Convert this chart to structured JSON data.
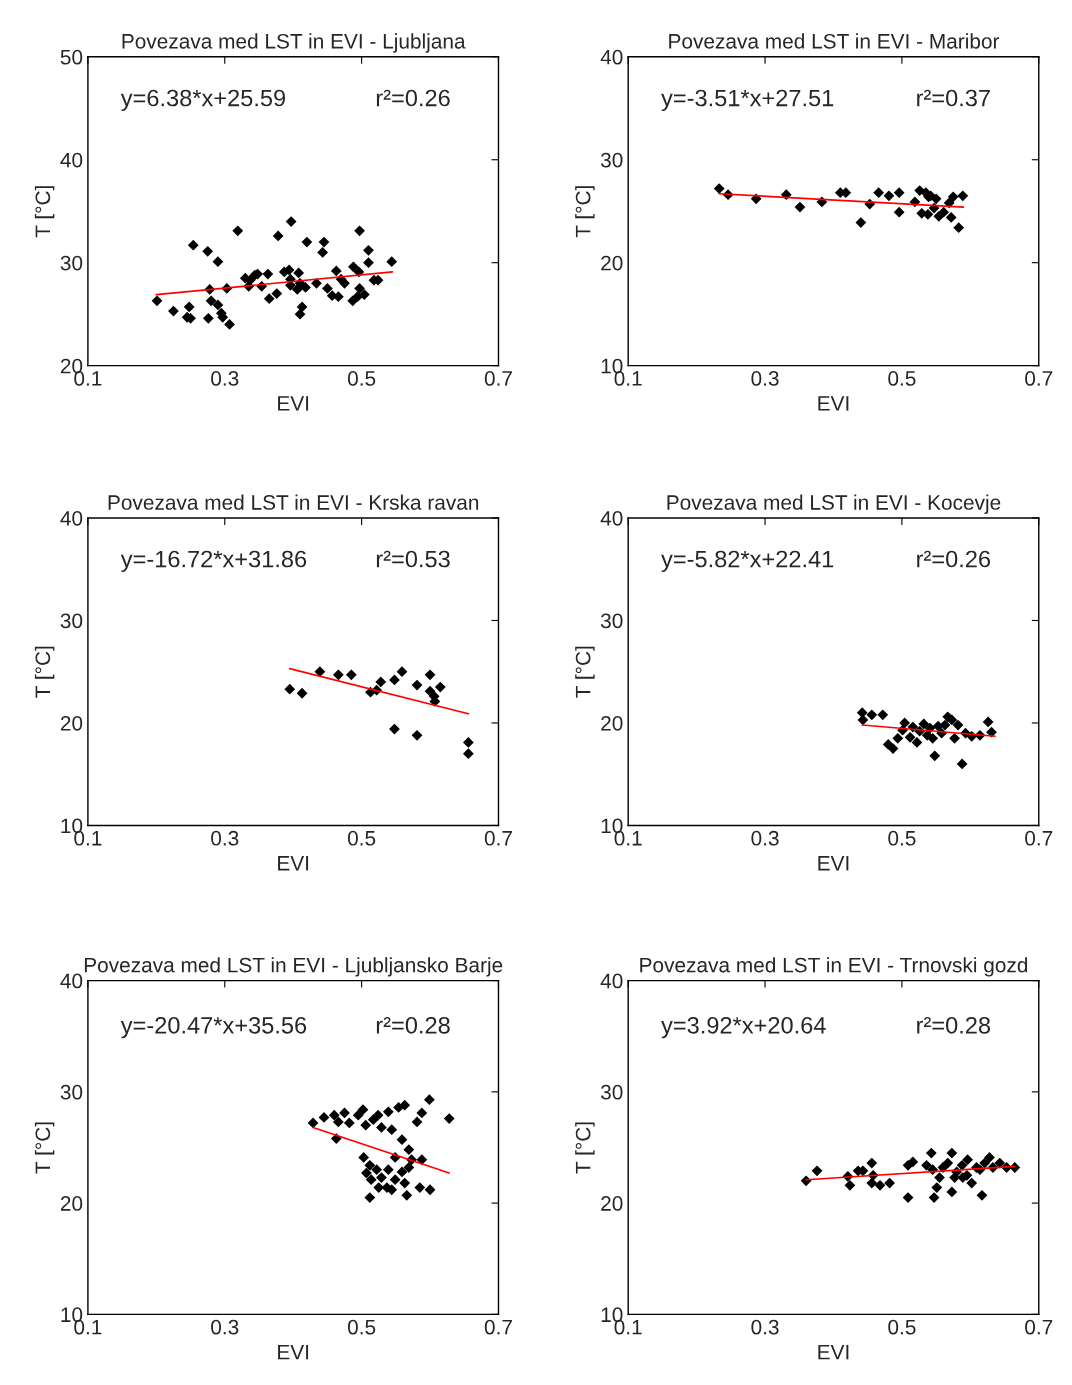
{
  "chart_data": [
    {
      "type": "scatter",
      "title": "Povezava med LST in EVI - Ljubljana",
      "xlabel": "EVI",
      "ylabel": "T [°C]",
      "xlim": [
        0.1,
        0.7
      ],
      "xticks": [
        0.1,
        0.3,
        0.5,
        0.7
      ],
      "ylim": [
        20,
        50
      ],
      "yticks": [
        20,
        30,
        40,
        50
      ],
      "annotations": [
        "y=6.38*x+25.59",
        "r²=0.26"
      ],
      "series": [
        {
          "marker": "diamond",
          "color": "#000000",
          "x": [
            0.201,
            0.225,
            0.245,
            0.248,
            0.254,
            0.275,
            0.29,
            0.25,
            0.276,
            0.28,
            0.29,
            0.295,
            0.297,
            0.307,
            0.278,
            0.303,
            0.319,
            0.33,
            0.335,
            0.337,
            0.344,
            0.348,
            0.363,
            0.354,
            0.365,
            0.376,
            0.378,
            0.387,
            0.394,
            0.396,
            0.396,
            0.397,
            0.408,
            0.406,
            0.41,
            0.418,
            0.41,
            0.413,
            0.42,
            0.445,
            0.443,
            0.434,
            0.45,
            0.457,
            0.466,
            0.463,
            0.47,
            0.475,
            0.487,
            0.496,
            0.497,
            0.494,
            0.504,
            0.497,
            0.51,
            0.51,
            0.518,
            0.524,
            0.544,
            0.488
          ],
          "values": [
            26.3,
            25.3,
            24.7,
            25.7,
            31.7,
            31.1,
            30.1,
            24.6,
            24.6,
            26.3,
            25.9,
            25.1,
            24.7,
            24.0,
            27.4,
            27.5,
            33.1,
            28.5,
            27.7,
            28.3,
            28.8,
            28.9,
            28.9,
            27.7,
            26.5,
            27.0,
            32.6,
            29.1,
            29.3,
            28.4,
            27.8,
            34.0,
            29.0,
            27.4,
            28.0,
            27.6,
            25.0,
            25.7,
            32.0,
            32.0,
            31.0,
            28.0,
            27.5,
            26.8,
            26.7,
            29.2,
            28.4,
            28.0,
            26.3,
            29.1,
            27.5,
            26.7,
            26.9,
            33.1,
            31.2,
            30.0,
            28.3,
            28.3,
            30.1,
            29.6
          ]
        },
        {
          "type": "line",
          "color": "#ff0000",
          "x": [
            0.2,
            0.545
          ],
          "values": [
            26.9,
            29.1
          ]
        }
      ]
    },
    {
      "type": "scatter",
      "title": "Povezava med LST in EVI - Maribor",
      "xlabel": "EVI",
      "ylabel": "T [°C]",
      "xlim": [
        0.1,
        0.7
      ],
      "xticks": [
        0.1,
        0.3,
        0.5,
        0.7
      ],
      "ylim": [
        10,
        40
      ],
      "yticks": [
        10,
        20,
        30,
        40
      ],
      "annotations": [
        "y=-3.51*x+27.51",
        "r²=0.37"
      ],
      "series": [
        {
          "marker": "diamond",
          "color": "#000000",
          "x": [
            0.233,
            0.246,
            0.287,
            0.331,
            0.351,
            0.383,
            0.41,
            0.418,
            0.44,
            0.453,
            0.466,
            0.481,
            0.496,
            0.496,
            0.519,
            0.526,
            0.535,
            0.539,
            0.55,
            0.529,
            0.538,
            0.547,
            0.554,
            0.569,
            0.572,
            0.575,
            0.583,
            0.589,
            0.542,
            0.561
          ],
          "values": [
            27.2,
            26.6,
            26.2,
            26.6,
            25.4,
            25.9,
            26.8,
            26.8,
            23.9,
            25.7,
            26.8,
            26.5,
            26.8,
            24.9,
            25.9,
            27.0,
            26.8,
            26.4,
            26.2,
            24.8,
            24.7,
            25.3,
            24.5,
            25.8,
            24.4,
            26.4,
            23.4,
            26.5,
            26.5,
            24.9
          ]
        },
        {
          "type": "line",
          "color": "#ff0000",
          "x": [
            0.233,
            0.59
          ],
          "values": [
            26.7,
            25.4
          ]
        }
      ]
    },
    {
      "type": "scatter",
      "title": "Povezava med LST in EVI - Krska ravan",
      "xlabel": "EVI",
      "ylabel": "T [°C]",
      "xlim": [
        0.1,
        0.7
      ],
      "xticks": [
        0.1,
        0.3,
        0.5,
        0.7
      ],
      "ylim": [
        10,
        40
      ],
      "yticks": [
        10,
        20,
        30,
        40
      ],
      "annotations": [
        "y=-16.72*x+31.86",
        "r²=0.53"
      ],
      "series": [
        {
          "marker": "diamond",
          "color": "#000000",
          "x": [
            0.395,
            0.413,
            0.439,
            0.466,
            0.485,
            0.513,
            0.522,
            0.528,
            0.548,
            0.559,
            0.548,
            0.581,
            0.581,
            0.6,
            0.6,
            0.606,
            0.607,
            0.615,
            0.656,
            0.656
          ],
          "values": [
            23.3,
            22.9,
            25.0,
            24.7,
            24.7,
            23.0,
            23.2,
            24.0,
            24.2,
            25.0,
            19.4,
            23.7,
            18.8,
            24.7,
            23.1,
            22.6,
            22.1,
            23.5,
            18.1,
            17.0
          ]
        },
        {
          "type": "line",
          "color": "#ff0000",
          "x": [
            0.395,
            0.656
          ],
          "values": [
            25.3,
            20.9
          ]
        }
      ]
    },
    {
      "type": "scatter",
      "title": "Povezava med LST in EVI - Kocevje",
      "xlabel": "EVI",
      "ylabel": "T [°C]",
      "xlim": [
        0.1,
        0.7
      ],
      "xticks": [
        0.1,
        0.3,
        0.5,
        0.7
      ],
      "ylim": [
        10,
        40
      ],
      "yticks": [
        10,
        20,
        30,
        40
      ],
      "annotations": [
        "y=-5.82*x+22.41",
        "r²=0.26"
      ],
      "series": [
        {
          "marker": "diamond",
          "color": "#000000",
          "x": [
            0.442,
            0.443,
            0.456,
            0.472,
            0.48,
            0.487,
            0.494,
            0.501,
            0.504,
            0.512,
            0.516,
            0.522,
            0.526,
            0.532,
            0.537,
            0.541,
            0.545,
            0.548,
            0.553,
            0.558,
            0.563,
            0.567,
            0.573,
            0.577,
            0.582,
            0.588,
            0.593,
            0.602,
            0.614,
            0.626,
            0.631
          ],
          "values": [
            21.0,
            20.3,
            20.8,
            20.8,
            17.9,
            17.5,
            18.5,
            19.3,
            20.0,
            18.6,
            19.6,
            18.1,
            19.2,
            19.9,
            18.8,
            19.5,
            18.5,
            16.8,
            19.7,
            19.0,
            19.8,
            20.6,
            20.3,
            18.5,
            19.8,
            16.0,
            19.0,
            18.7,
            18.8,
            20.1,
            19.1
          ]
        },
        {
          "type": "line",
          "color": "#ff0000",
          "x": [
            0.442,
            0.636
          ],
          "values": [
            19.8,
            18.7
          ]
        }
      ]
    },
    {
      "type": "scatter",
      "title": "Povezava med LST in EVI - Ljubljansko Barje",
      "xlabel": "EVI",
      "ylabel": "T [°C]",
      "xlim": [
        0.1,
        0.7
      ],
      "xticks": [
        0.1,
        0.3,
        0.5,
        0.7
      ],
      "ylim": [
        10,
        40
      ],
      "yticks": [
        10,
        20,
        30,
        40
      ],
      "annotations": [
        "y=-20.47*x+35.56",
        "r²=0.28"
      ],
      "series": [
        {
          "marker": "diamond",
          "color": "#000000",
          "x": [
            0.429,
            0.445,
            0.46,
            0.466,
            0.475,
            0.482,
            0.463,
            0.495,
            0.502,
            0.506,
            0.517,
            0.524,
            0.529,
            0.539,
            0.544,
            0.554,
            0.563,
            0.559,
            0.569,
            0.581,
            0.588,
            0.599,
            0.628,
            0.588,
            0.573,
            0.549,
            0.503,
            0.512,
            0.507,
            0.522,
            0.514,
            0.529,
            0.539,
            0.525,
            0.537,
            0.549,
            0.559,
            0.563,
            0.512,
            0.544,
            0.569,
            0.585,
            0.6,
            0.566
          ],
          "values": [
            27.2,
            27.7,
            27.9,
            27.3,
            28.1,
            27.2,
            25.8,
            27.9,
            28.4,
            27.0,
            27.5,
            27.9,
            26.8,
            28.2,
            26.6,
            28.6,
            28.8,
            25.7,
            24.8,
            27.3,
            28.1,
            29.3,
            27.6,
            23.9,
            23.9,
            24.1,
            24.1,
            23.4,
            22.7,
            23.0,
            22.1,
            22.3,
            23.0,
            21.4,
            21.4,
            22.1,
            22.8,
            21.8,
            20.5,
            21.2,
            23.2,
            21.4,
            21.2,
            20.7
          ]
        },
        {
          "type": "line",
          "color": "#ff0000",
          "x": [
            0.429,
            0.628
          ],
          "values": [
            26.8,
            22.7
          ]
        }
      ]
    },
    {
      "type": "scatter",
      "title": "Povezava med LST in EVI - Trnovski gozd",
      "xlabel": "EVI",
      "ylabel": "T [°C]",
      "xlim": [
        0.1,
        0.7
      ],
      "xticks": [
        0.1,
        0.3,
        0.5,
        0.7
      ],
      "ylim": [
        10,
        40
      ],
      "yticks": [
        10,
        20,
        30,
        40
      ],
      "annotations": [
        "y=3.92*x+20.64",
        "r²=0.28"
      ],
      "series": [
        {
          "marker": "diamond",
          "color": "#000000",
          "x": [
            0.36,
            0.376,
            0.421,
            0.424,
            0.436,
            0.443,
            0.456,
            0.458,
            0.456,
            0.468,
            0.482,
            0.509,
            0.516,
            0.509,
            0.536,
            0.543,
            0.545,
            0.551,
            0.555,
            0.547,
            0.56,
            0.567,
            0.573,
            0.573,
            0.58,
            0.577,
            0.588,
            0.589,
            0.596,
            0.602,
            0.609,
            0.617,
            0.621,
            0.628,
            0.633,
            0.643,
            0.653,
            0.665,
            0.595,
            0.614
          ],
          "values": [
            22.0,
            22.9,
            22.4,
            21.6,
            22.9,
            22.9,
            23.6,
            22.5,
            21.8,
            21.6,
            21.8,
            23.4,
            23.7,
            20.5,
            23.4,
            24.5,
            23.0,
            21.4,
            22.3,
            20.5,
            23.2,
            23.6,
            24.5,
            21.0,
            22.8,
            22.3,
            23.4,
            22.3,
            23.9,
            21.8,
            23.2,
            20.7,
            23.6,
            24.1,
            23.2,
            23.6,
            23.2,
            23.2,
            22.5,
            23.0
          ]
        },
        {
          "type": "line",
          "color": "#ff0000",
          "x": [
            0.36,
            0.665
          ],
          "values": [
            22.1,
            23.3
          ]
        }
      ]
    }
  ]
}
